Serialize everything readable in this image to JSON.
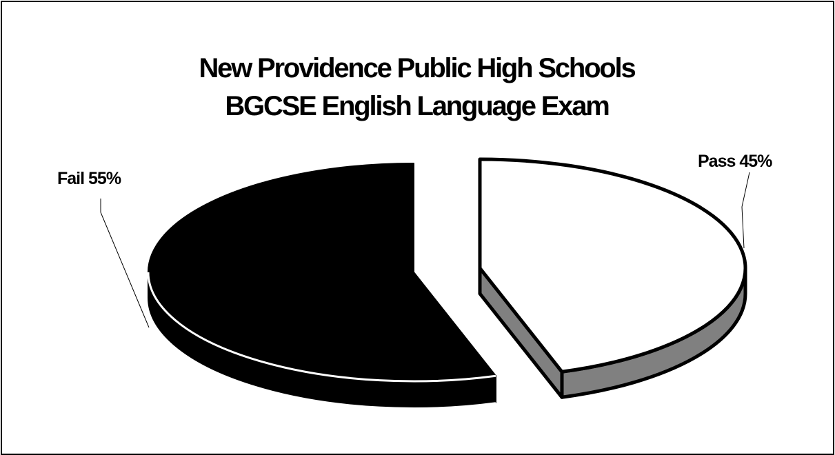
{
  "chart_data": {
    "type": "pie",
    "title": [
      "New Providence Public High Schools",
      "BGCSE English Language Exam"
    ],
    "slices": [
      {
        "name": "Pass",
        "value": 45,
        "label": "Pass 45%",
        "color": "#ffffff",
        "side_color": "#808080"
      },
      {
        "name": "Fail",
        "value": 55,
        "label": "Fail 55%",
        "color": "#000000",
        "side_color": "#000000"
      }
    ],
    "style": "3d-exploded",
    "legend": "none"
  }
}
